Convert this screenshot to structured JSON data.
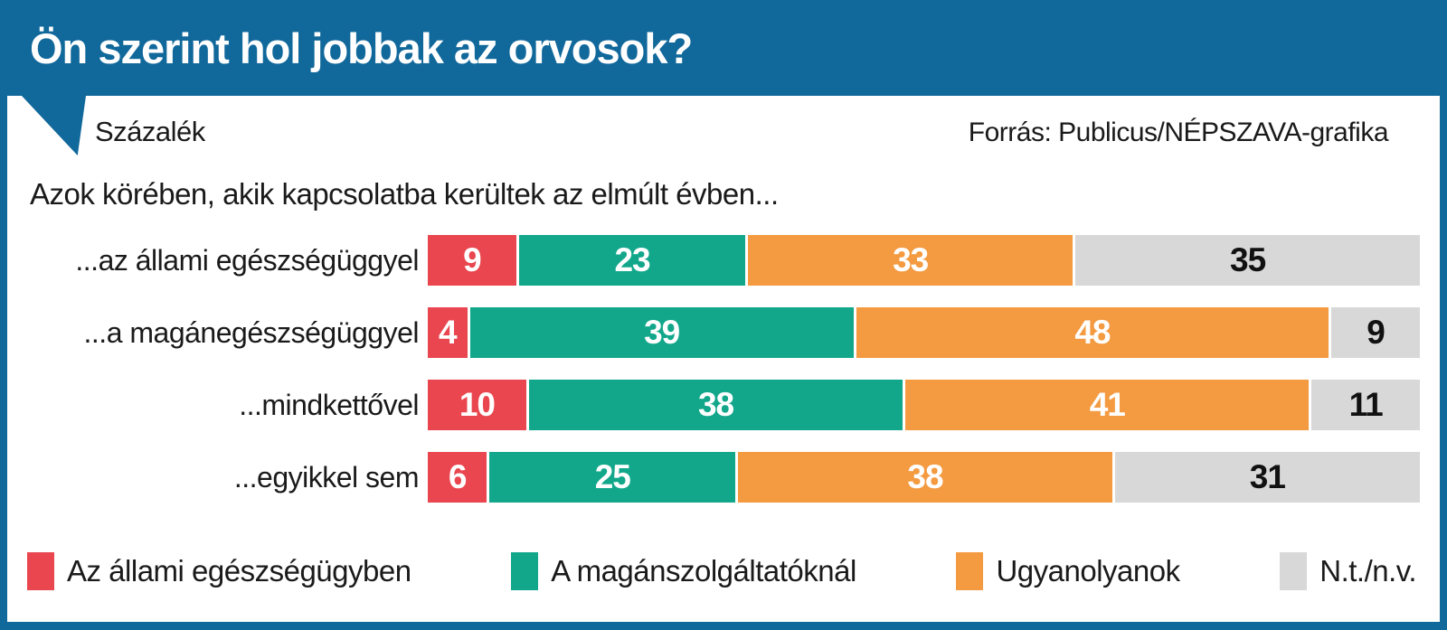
{
  "header": {
    "title": "Ön szerint hol jobbak az orvosok?"
  },
  "meta": {
    "unit_label": "Százalék",
    "source": "Forrás: Publicus/NÉPSZAVA-grafika"
  },
  "subtitle": "Azok körében, akik kapcsolatba kerültek az elmúlt évben...",
  "colors": {
    "accent_blue": "#11689b",
    "red": "#e9464f",
    "teal": "#12a78b",
    "orange": "#f49a40",
    "gray": "#d8d8d8",
    "text_dark": "#1a1a1a"
  },
  "chart_data": {
    "type": "bar",
    "orientation": "horizontal-stacked",
    "title": "Ön szerint hol jobbak az orvosok?",
    "subtitle": "Azok körében, akik kapcsolatba kerültek az elmúlt évben...",
    "unit": "Százalék",
    "source": "Forrás: Publicus/NÉPSZAVA-grafika",
    "xlim": [
      0,
      100
    ],
    "grid": false,
    "legend_position": "bottom",
    "value_labels": "inside",
    "categories": [
      "...az állami egészségüggyel",
      "...a magánegészségüggyel",
      "...mindkettővel",
      "...egyikkel sem"
    ],
    "series": [
      {
        "name": "Az állami egészségügyben",
        "color": "#e9464f",
        "text_color": "#ffffff",
        "values": [
          9,
          4,
          10,
          6
        ]
      },
      {
        "name": "A magánszolgáltatóknál",
        "color": "#12a78b",
        "text_color": "#ffffff",
        "values": [
          23,
          39,
          38,
          25
        ]
      },
      {
        "name": "Ugyanolyanok",
        "color": "#f49a40",
        "text_color": "#ffffff",
        "values": [
          33,
          48,
          41,
          38
        ]
      },
      {
        "name": "N.t./n.v.",
        "color": "#d8d8d8",
        "text_color": "#111111",
        "values": [
          35,
          9,
          11,
          31
        ]
      }
    ]
  }
}
